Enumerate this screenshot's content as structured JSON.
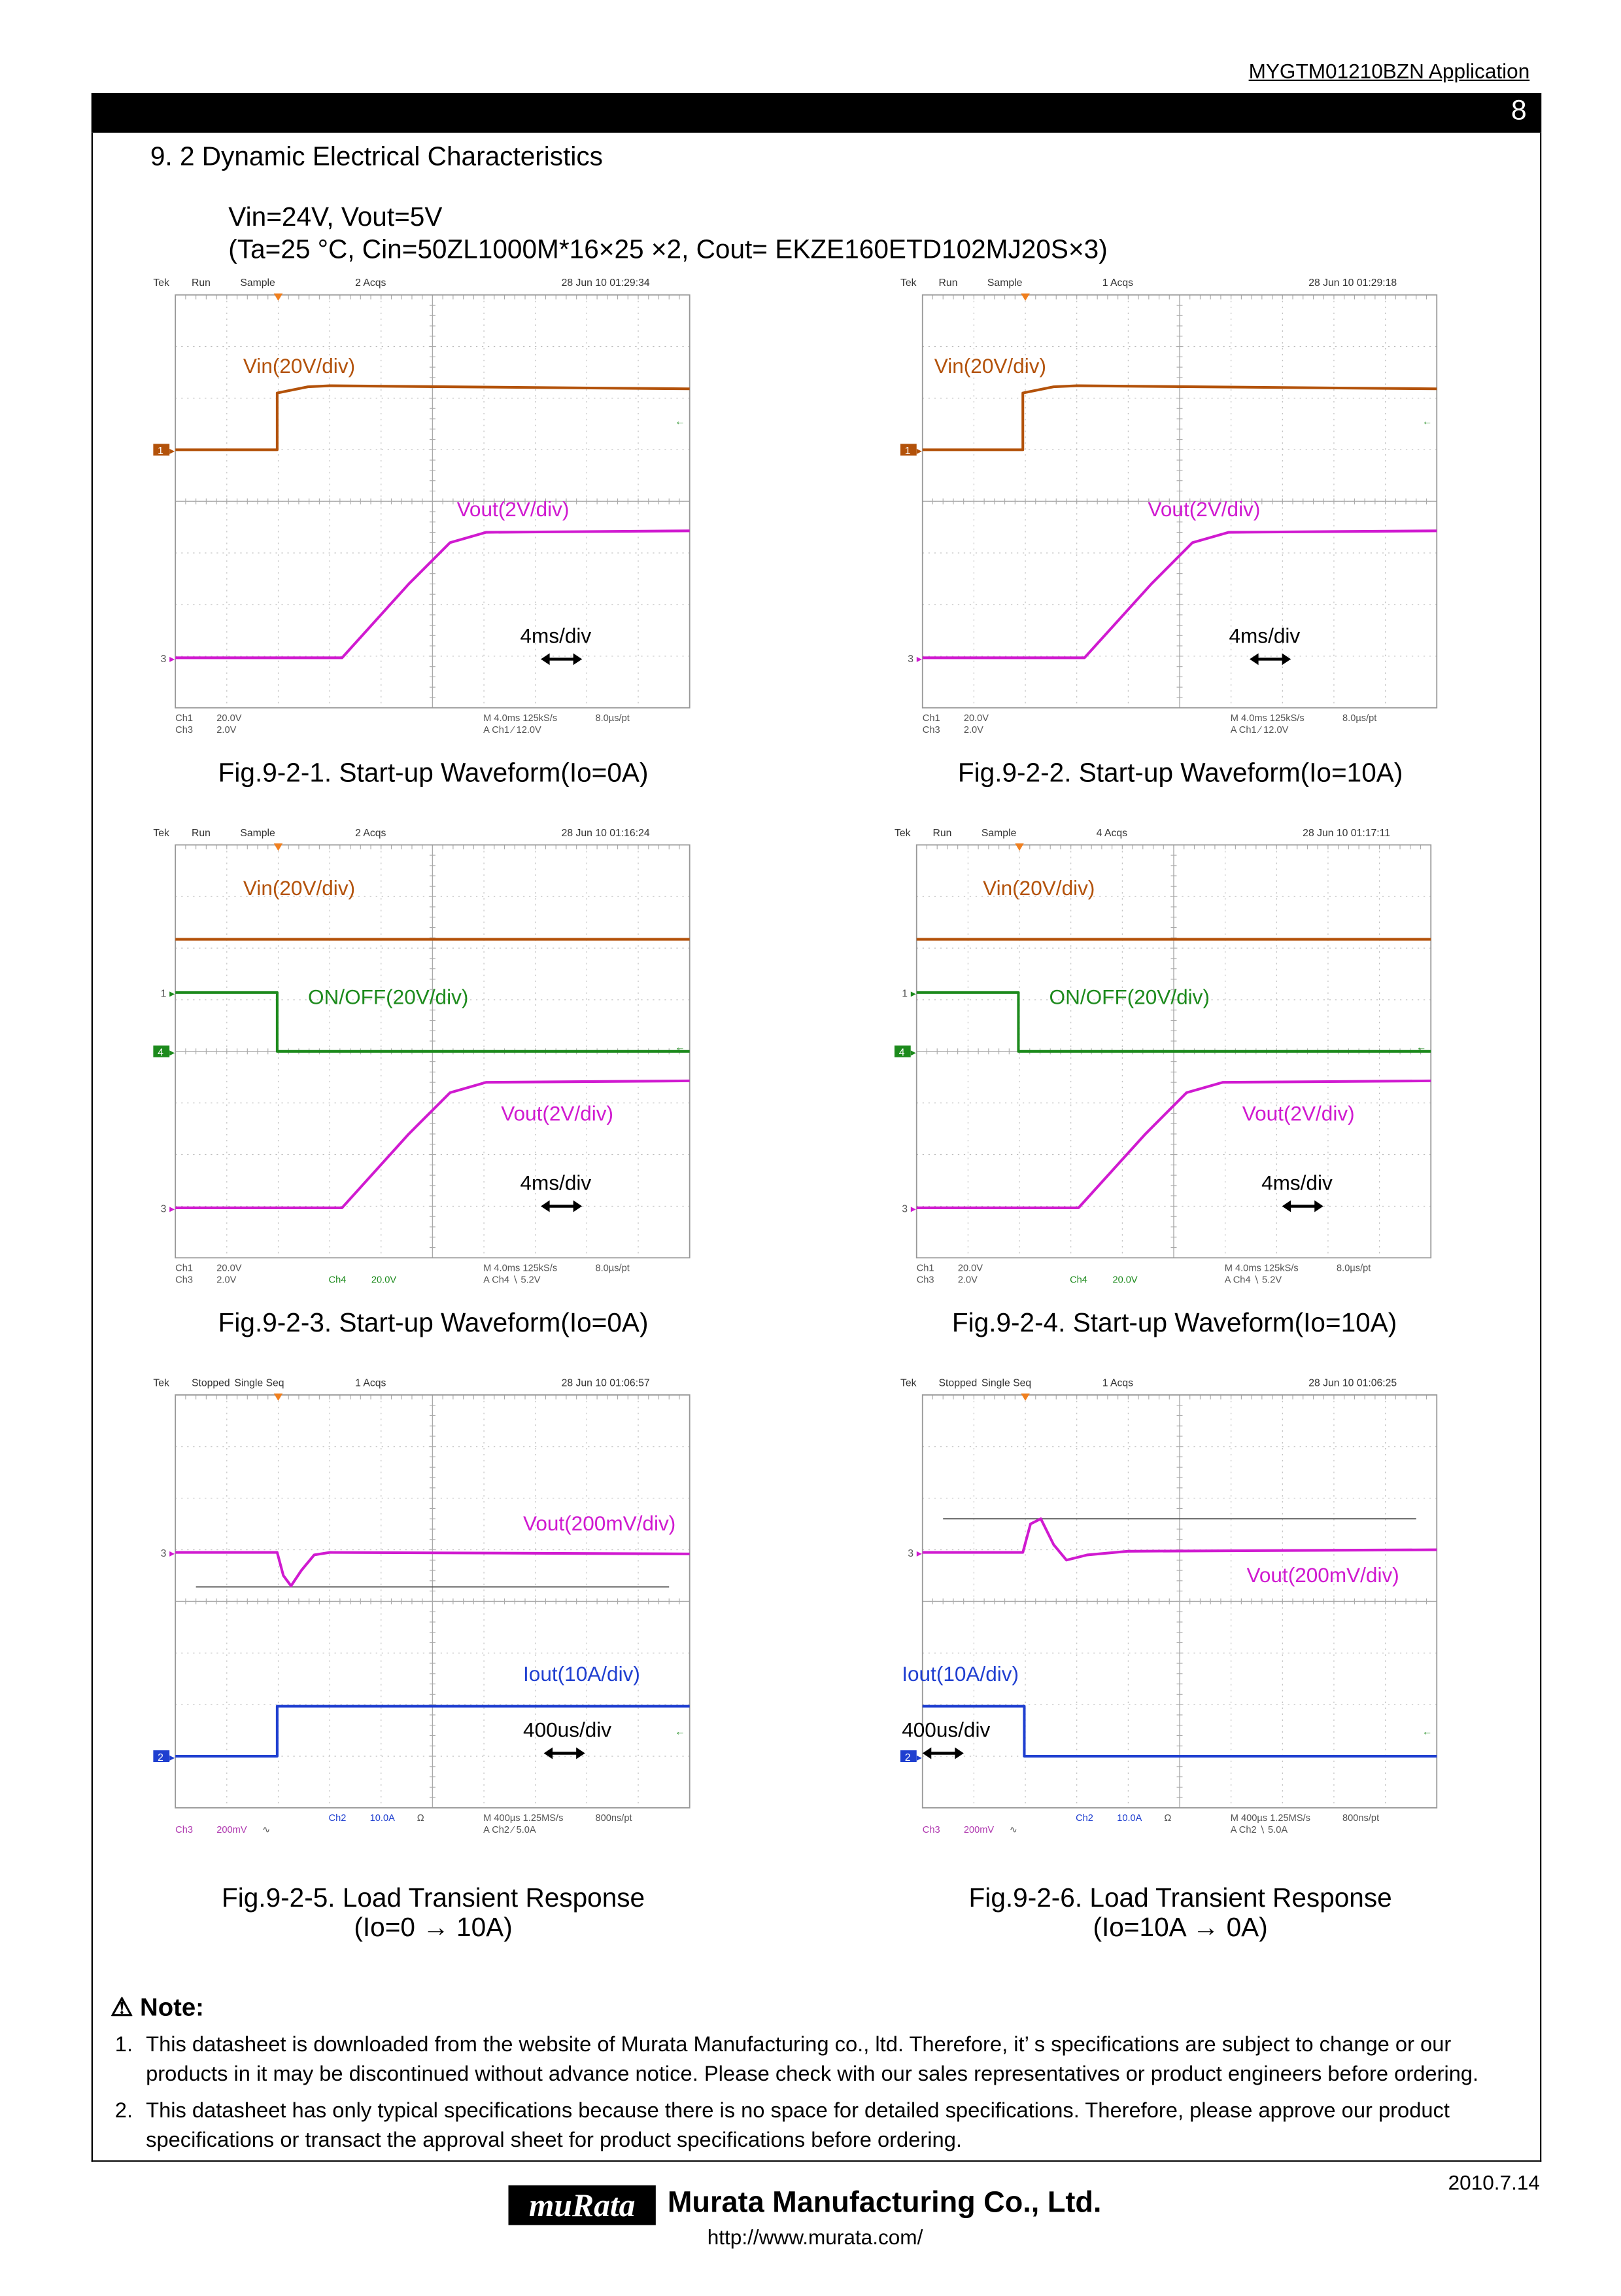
{
  "header": {
    "doc": "MYGTM01210BZN  Application",
    "page": "8"
  },
  "section": {
    "title": "9. 2 Dynamic Electrical Characteristics",
    "cond1": "Vin=24V, Vout=5V",
    "cond2": "(Ta=25 °C, Cin=50ZL1000M*16×25 ×2, Cout= EKZE160ETD102MJ20S×3)"
  },
  "colors": {
    "vin": "#b3520a",
    "vout": "#d01ad0",
    "onoff": "#1c8a1c",
    "iout": "#1f3fd0"
  },
  "scopes": [
    {
      "caption": [
        "Fig.9-2-1. Start-up Waveform(Io=0A)"
      ],
      "header": {
        "tek": "Tek",
        "status": "Run",
        "mode": "Sample",
        "acqs": "2 Acqs",
        "date": "28 Jun 10 01:29:34"
      },
      "labels": [
        "Vin(20V/div)",
        "Vout(2V/div)"
      ],
      "timebase": "4ms/div",
      "markers": [
        "1",
        "3"
      ],
      "footer": [
        "Ch1",
        "20.0V",
        "Ch3",
        "2.0V",
        "M 4.0ms 125kS/s",
        "8.0µs/pt",
        "A  Ch1  ∕  12.0V"
      ]
    },
    {
      "caption": [
        "Fig.9-2-2. Start-up Waveform(Io=10A)"
      ],
      "header": {
        "tek": "Tek",
        "status": "Run",
        "mode": "Sample",
        "acqs": "1 Acqs",
        "date": "28 Jun 10 01:29:18"
      },
      "labels": [
        "Vin(20V/div)",
        "Vout(2V/div)"
      ],
      "timebase": "4ms/div",
      "markers": [
        "1",
        "3"
      ],
      "footer": [
        "Ch1",
        "20.0V",
        "Ch3",
        "2.0V",
        "M 4.0ms 125kS/s",
        "8.0µs/pt",
        "A  Ch1  ∕  12.0V"
      ]
    },
    {
      "caption": [
        "Fig.9-2-3. Start-up Waveform(Io=0A)"
      ],
      "header": {
        "tek": "Tek",
        "status": "Run",
        "mode": "Sample",
        "acqs": "2 Acqs",
        "date": "28 Jun 10 01:16:24"
      },
      "labels": [
        "Vin(20V/div)",
        "ON/OFF(20V/div)",
        "Vout(2V/div)"
      ],
      "timebase": "4ms/div",
      "markers": [
        "1",
        "4",
        "3"
      ],
      "footer": [
        "Ch1",
        "20.0V",
        "Ch3",
        "2.0V",
        "M 4.0ms 125kS/s",
        "8.0µs/pt",
        "A  Ch4  ∖  5.2V",
        "Ch4",
        "20.0V"
      ]
    },
    {
      "caption": [
        "Fig.9-2-4. Start-up Waveform(Io=10A)"
      ],
      "header": {
        "tek": "Tek",
        "status": "Run",
        "mode": "Sample",
        "acqs": "4 Acqs",
        "date": "28 Jun 10 01:17:11"
      },
      "labels": [
        "Vin(20V/div)",
        "ON/OFF(20V/div)",
        "Vout(2V/div)"
      ],
      "timebase": "4ms/div",
      "markers": [
        "1",
        "4",
        "3"
      ],
      "footer": [
        "Ch1",
        "20.0V",
        "Ch3",
        "2.0V",
        "M 4.0ms 125kS/s",
        "8.0µs/pt",
        "A  Ch4  ∖  5.2V",
        "Ch4",
        "20.0V"
      ]
    },
    {
      "caption": [
        "Fig.9-2-5. Load Transient Response",
        "(Io=0  →  10A)"
      ],
      "header": {
        "tek": "Tek",
        "status": "Stopped",
        "mode": "Single Seq",
        "acqs": "1 Acqs",
        "date": "28 Jun 10 01:06:57"
      },
      "labels": [
        "Vout(200mV/div)",
        "Iout(10A/div)"
      ],
      "timebase": "400us/div",
      "markers": [
        "3",
        "2"
      ],
      "footer": [
        "Ch2",
        "10.0A",
        "Ω",
        "Ch3",
        "200mV",
        "∿",
        "M 400µs 1.25MS/s",
        "800ns/pt",
        "A  Ch2  ∕  5.0A"
      ]
    },
    {
      "caption": [
        "Fig.9-2-6. Load Transient Response",
        "(Io=10A  →  0A)"
      ],
      "header": {
        "tek": "Tek",
        "status": "Stopped",
        "mode": "Single Seq",
        "acqs": "1 Acqs",
        "date": "28 Jun 10 01:06:25"
      },
      "labels": [
        "Vout(200mV/div)",
        "Iout(10A/div)"
      ],
      "timebase": "400us/div",
      "markers": [
        "3",
        "2"
      ],
      "footer": [
        "Ch2",
        "10.0A",
        "Ω",
        "Ch3",
        "200mV",
        "∿",
        "M 400µs 1.25MS/s",
        "800ns/pt",
        "A  Ch2  ∖  5.0A"
      ]
    }
  ],
  "note": {
    "title": "Note:",
    "items": [
      {
        "num": "1.",
        "text": "This datasheet is downloaded from the website of Murata Manufacturing co., ltd. Therefore, it’ s specifications are subject to change or our products in it may be discontinued without advance notice. Please check with our sales representatives or product engineers before ordering."
      },
      {
        "num": "2.",
        "text": "This datasheet has only typical specifications because there is no space for detailed specifications. Therefore, please approve our product specifications or transact the approval sheet for product specifications before ordering."
      }
    ]
  },
  "footer": {
    "date": "2010.7.14",
    "logo": "muRata",
    "company": "Murata Manufacturing Co., Ltd.",
    "url": "http://www.murata.com/"
  }
}
